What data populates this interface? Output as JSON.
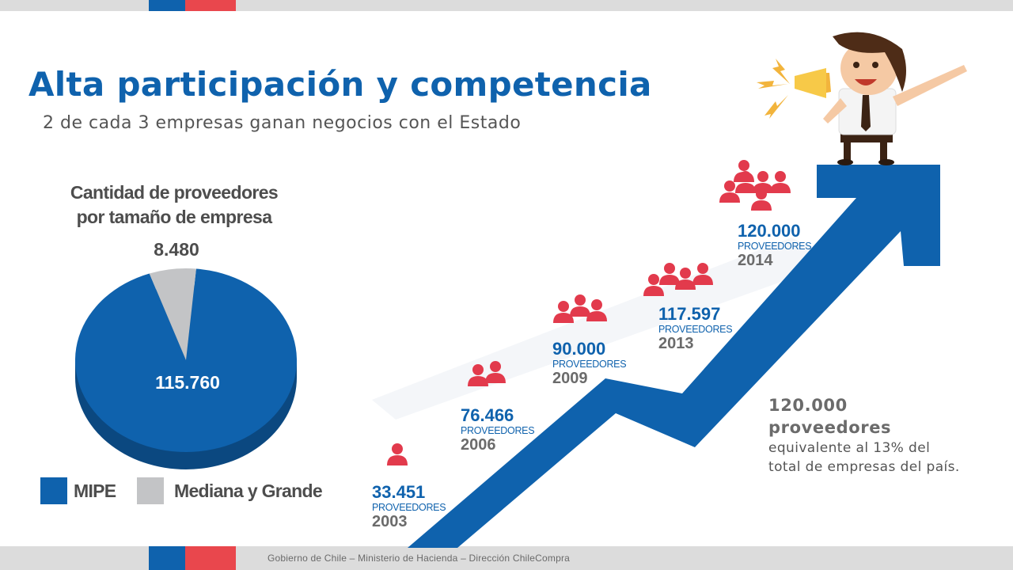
{
  "header": {
    "title": "Alta participación y competencia",
    "subtitle": "2 de cada 3 empresas ganan negocios con el Estado"
  },
  "footer": {
    "text": "Gobierno de Chile – Ministerio de Hacienda – Dirección ChileCompra"
  },
  "colors": {
    "brand_blue": "#0f62ad",
    "brand_red": "#e9474d",
    "pie_gray": "#c3c4c6",
    "people_red": "#e23a4c"
  },
  "chart_data": [
    {
      "type": "pie",
      "title": "Cantidad de proveedores por tamaño de empresa",
      "title_lines": [
        "Cantidad de proveedores",
        "por tamaño de empresa"
      ],
      "slices": [
        {
          "name": "MIPE",
          "label": "115.760",
          "value": 115760,
          "color": "#0f62ad"
        },
        {
          "name": "Mediana y Grande",
          "label": "8.480",
          "value": 8480,
          "color": "#c3c4c6"
        }
      ],
      "legend": [
        {
          "name": "MIPE",
          "color": "#0f62ad"
        },
        {
          "name": "Mediana y Grande",
          "color": "#c3c4c6"
        }
      ]
    },
    {
      "type": "line",
      "unit_label": "PROVEEDORES",
      "points": [
        {
          "year": "2003",
          "label": "33.451",
          "value": 33451,
          "people": 1
        },
        {
          "year": "2006",
          "label": "76.466",
          "value": 76466,
          "people": 2
        },
        {
          "year": "2009",
          "label": "90.000",
          "value": 90000,
          "people": 3
        },
        {
          "year": "2013",
          "label": "117.597",
          "value": 117597,
          "people": 4
        },
        {
          "year": "2014",
          "label": "120.000",
          "value": 120000,
          "people": 6
        }
      ]
    }
  ],
  "side_note": {
    "big": "120.000 proveedores",
    "small": "equivalente al 13% del total de empresas del país."
  }
}
